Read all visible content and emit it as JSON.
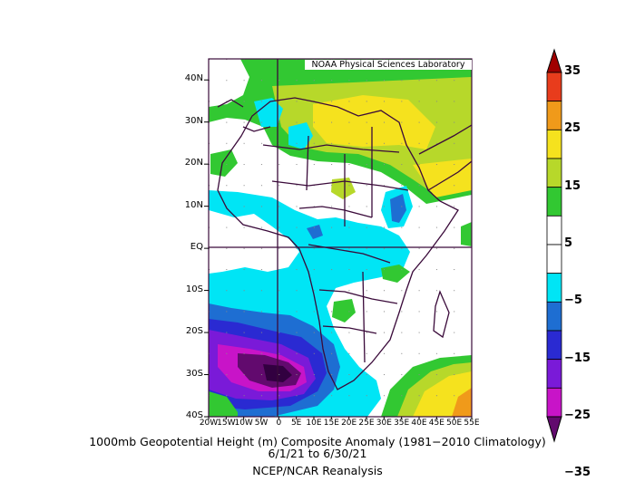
{
  "map": {
    "credit": "NOAA Physical Sciences Laboratory",
    "lat_labels": [
      "40N",
      "30N",
      "20N",
      "10N",
      "EQ",
      "10S",
      "20S",
      "30S",
      "40S"
    ],
    "lon_labels": [
      "20W",
      "15W",
      "10W",
      "5W",
      "0",
      "5E",
      "10E",
      "15E",
      "20E",
      "25E",
      "30E",
      "35E",
      "40E",
      "45E",
      "50E",
      "55E"
    ],
    "extent": {
      "lon": [
        -20,
        55
      ],
      "lat": [
        -40,
        45
      ]
    }
  },
  "colorbar": {
    "labels": [
      "35",
      "25",
      "15",
      "5",
      "−5",
      "−15",
      "−25",
      "−35"
    ],
    "colors": [
      "#a00000",
      "#e83c1c",
      "#f09a1a",
      "#f5e21e",
      "#b7d82a",
      "#32c832",
      "#ffffff",
      "#ffffff",
      "#00e5f5",
      "#1e6ed2",
      "#2a2ad2",
      "#7a1ad8",
      "#c814c8",
      "#620a6e"
    ]
  },
  "titles": {
    "line1": "1000mb Geopotential Height (m) Composite Anomaly (1981−2010 Climatology)",
    "line2": "6/1/21  to 6/30/21",
    "line3": "NCEP/NCAR Reanalysis"
  }
}
